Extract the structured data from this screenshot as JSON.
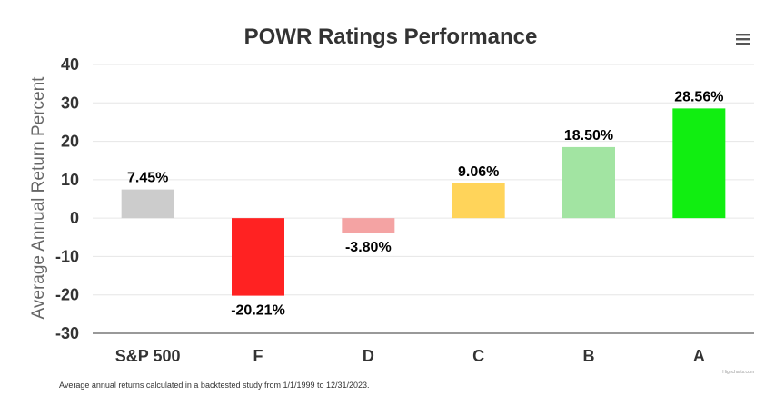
{
  "chart_data": {
    "type": "bar",
    "title": "POWR Ratings Performance",
    "xlabel": "",
    "ylabel": "Average Annual Return Percent",
    "categories": [
      "S&P 500",
      "F",
      "D",
      "C",
      "B",
      "A"
    ],
    "series": [
      {
        "values": [
          7.45,
          -20.21,
          -3.8,
          9.06,
          18.5,
          28.56
        ],
        "labels": [
          "7.45%",
          "-20.21%",
          "-3.80%",
          "9.06%",
          "18.50%",
          "28.56%"
        ],
        "colors": [
          "#cccccc",
          "#ff2222",
          "#f4a3a3",
          "#ffd45a",
          "#a2e4a2",
          "#11ee11"
        ]
      }
    ],
    "ylim": [
      -30,
      40
    ],
    "yticks": [
      -30,
      -20,
      -10,
      0,
      10,
      20,
      30,
      40
    ],
    "grid": true,
    "legend": "none"
  },
  "footnote": "Average annual returns calculated in a backtested study from 1/1/1999 to 12/31/2023.",
  "credit": "Highcharts.com",
  "menu_icon": "hamburger-menu-icon"
}
